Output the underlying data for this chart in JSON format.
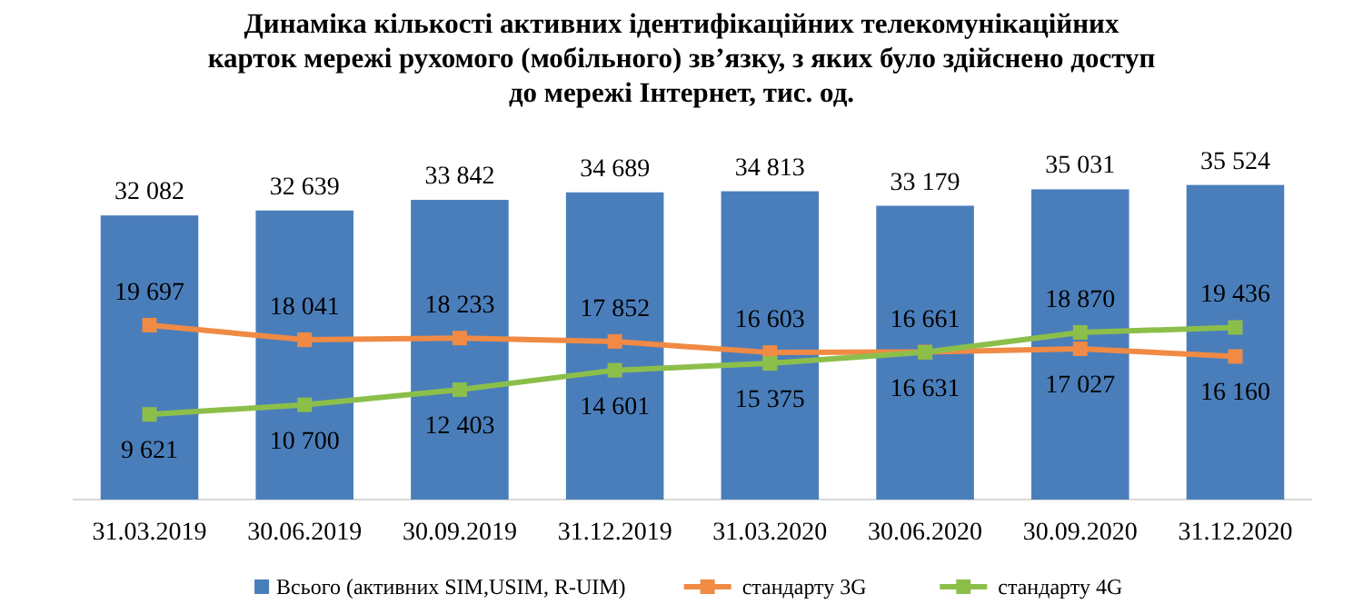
{
  "chart_data": {
    "type": "bar",
    "title": "Динаміка кількості активних ідентифікаційних телекомунікаційних\nкарток мережі рухомого (мобільного) зв’язку, з яких було здійснено доступ\nдо мережі Інтернет, тис. од.",
    "categories": [
      "31.03.2019",
      "30.06.2019",
      "30.09.2019",
      "31.12.2019",
      "31.03.2020",
      "30.06.2020",
      "30.09.2020",
      "31.12.2020"
    ],
    "series": [
      {
        "name": "Всього (активних SIM,USIM,  R-UIM)",
        "color": "#4a7ebb",
        "values": [
          32082,
          32639,
          33842,
          34689,
          34813,
          33179,
          35031,
          35524
        ]
      },
      {
        "name": "стандарту 3G",
        "type": "line",
        "color": "#f08a45",
        "values": [
          19697,
          18041,
          18233,
          17852,
          16603,
          16661,
          17027,
          16160
        ]
      },
      {
        "name": "стандарту 4G",
        "type": "line",
        "color": "#8cbf4a",
        "values": [
          9621,
          10700,
          12403,
          14601,
          15375,
          16631,
          18870,
          19436
        ]
      }
    ],
    "data_labels": true,
    "legend": "bottom",
    "marker": "square",
    "tick_labels": "x"
  }
}
